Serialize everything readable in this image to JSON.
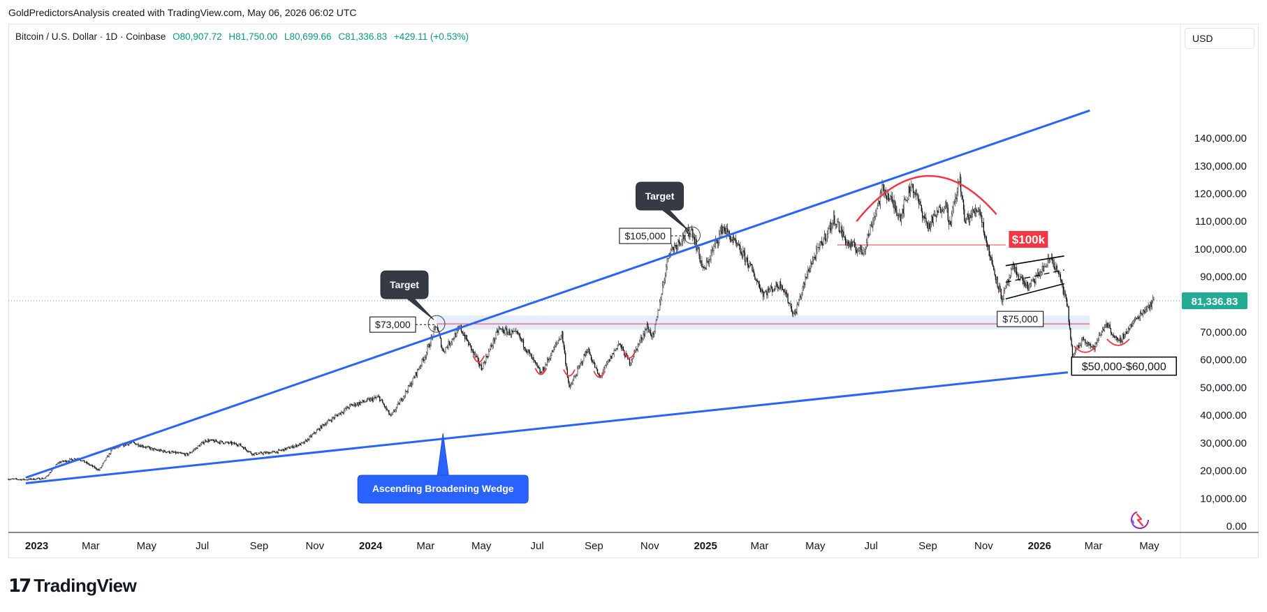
{
  "header": {
    "credit": "GoldPredictorsAnalysis created with TradingView.com, May 06, 2026 06:02 UTC"
  },
  "legend": {
    "symbol": "Bitcoin / U.S. Dollar · 1D · Coinbase",
    "open": "O80,907.72",
    "high": "H81,750.00",
    "low": "L80,699.66",
    "close": "C81,336.83",
    "change": "+429.11 (+0.53%)"
  },
  "currency_button": "USD",
  "footer": {
    "brand": "TradingView"
  },
  "colors": {
    "trendline": "#2962ff",
    "up": "#089981",
    "down": "#f23645",
    "pattern": "#f23645",
    "zone": "#c8d6f5",
    "price_tag": "#22ab94"
  },
  "chart_data": {
    "type": "candlestick",
    "title": "",
    "xlabel": "",
    "ylabel": "",
    "ylim": [
      0,
      150000
    ],
    "x_range": [
      "2022-12-01",
      "2026-05-06"
    ],
    "x_ticks": [
      {
        "date": "2023-01-01",
        "label": "2023",
        "bold": true
      },
      {
        "date": "2023-03-01",
        "label": "Mar"
      },
      {
        "date": "2023-05-01",
        "label": "May"
      },
      {
        "date": "2023-07-01",
        "label": "Jul"
      },
      {
        "date": "2023-09-01",
        "label": "Sep"
      },
      {
        "date": "2023-11-01",
        "label": "Nov"
      },
      {
        "date": "2024-01-01",
        "label": "2024",
        "bold": true
      },
      {
        "date": "2024-03-01",
        "label": "Mar"
      },
      {
        "date": "2024-05-01",
        "label": "May"
      },
      {
        "date": "2024-07-01",
        "label": "Jul"
      },
      {
        "date": "2024-09-01",
        "label": "Sep"
      },
      {
        "date": "2024-11-01",
        "label": "Nov"
      },
      {
        "date": "2025-01-01",
        "label": "2025",
        "bold": true
      },
      {
        "date": "2025-03-01",
        "label": "Mar"
      },
      {
        "date": "2025-05-01",
        "label": "May"
      },
      {
        "date": "2025-07-01",
        "label": "Jul"
      },
      {
        "date": "2025-09-01",
        "label": "Sep"
      },
      {
        "date": "2025-11-01",
        "label": "Nov"
      },
      {
        "date": "2026-01-01",
        "label": "2026",
        "bold": true
      },
      {
        "date": "2026-03-01",
        "label": "Mar"
      },
      {
        "date": "2026-05-01",
        "label": "May"
      }
    ],
    "y_ticks": [
      {
        "value": 0,
        "label": "0.00"
      },
      {
        "value": 10000,
        "label": "10,000.00"
      },
      {
        "value": 20000,
        "label": "20,000.00"
      },
      {
        "value": 30000,
        "label": "30,000.00"
      },
      {
        "value": 40000,
        "label": "40,000.00"
      },
      {
        "value": 50000,
        "label": "50,000.00"
      },
      {
        "value": 60000,
        "label": "60,000.00"
      },
      {
        "value": 70000,
        "label": "70,000.00"
      },
      {
        "value": 80000,
        "label": "80,000.00"
      },
      {
        "value": 90000,
        "label": "90,000.00"
      },
      {
        "value": 100000,
        "label": "100,000.00"
      },
      {
        "value": 110000,
        "label": "110,000.00"
      },
      {
        "value": 120000,
        "label": "120,000.00"
      },
      {
        "value": 130000,
        "label": "130,000.00"
      },
      {
        "value": 140000,
        "label": "140,000.00"
      }
    ],
    "last_price": {
      "value": 81336.83,
      "label": "81,336.83"
    },
    "price_path": [
      [
        "2022-12-01",
        17000
      ],
      [
        "2022-12-20",
        16800
      ],
      [
        "2023-01-10",
        17300
      ],
      [
        "2023-01-25",
        23000
      ],
      [
        "2023-02-15",
        24500
      ],
      [
        "2023-03-10",
        20200
      ],
      [
        "2023-03-25",
        28000
      ],
      [
        "2023-04-15",
        30200
      ],
      [
        "2023-05-10",
        27500
      ],
      [
        "2023-06-15",
        25800
      ],
      [
        "2023-07-05",
        31000
      ],
      [
        "2023-08-10",
        29500
      ],
      [
        "2023-08-25",
        26000
      ],
      [
        "2023-09-20",
        26800
      ],
      [
        "2023-10-20",
        30000
      ],
      [
        "2023-11-10",
        36500
      ],
      [
        "2023-12-10",
        43500
      ],
      [
        "2024-01-10",
        46500
      ],
      [
        "2024-01-23",
        39500
      ],
      [
        "2024-02-15",
        52000
      ],
      [
        "2024-03-01",
        62000
      ],
      [
        "2024-03-13",
        72500
      ],
      [
        "2024-03-20",
        63000
      ],
      [
        "2024-04-08",
        71500
      ],
      [
        "2024-05-01",
        57000
      ],
      [
        "2024-05-20",
        71000
      ],
      [
        "2024-06-10",
        69000
      ],
      [
        "2024-07-05",
        55000
      ],
      [
        "2024-07-28",
        69500
      ],
      [
        "2024-08-05",
        49500
      ],
      [
        "2024-08-25",
        64000
      ],
      [
        "2024-09-07",
        53500
      ],
      [
        "2024-09-28",
        66000
      ],
      [
        "2024-10-10",
        59000
      ],
      [
        "2024-10-29",
        72000
      ],
      [
        "2024-11-05",
        68000
      ],
      [
        "2024-11-22",
        99000
      ],
      [
        "2024-12-05",
        103500
      ],
      [
        "2024-12-17",
        107000
      ],
      [
        "2024-12-30",
        92000
      ],
      [
        "2025-01-20",
        108000
      ],
      [
        "2025-02-15",
        96000
      ],
      [
        "2025-03-05",
        84000
      ],
      [
        "2025-03-25",
        87500
      ],
      [
        "2025-04-08",
        76000
      ],
      [
        "2025-04-25",
        94000
      ],
      [
        "2025-05-22",
        111000
      ],
      [
        "2025-06-05",
        102000
      ],
      [
        "2025-06-22",
        99000
      ],
      [
        "2025-07-14",
        122000
      ],
      [
        "2025-08-02",
        112000
      ],
      [
        "2025-08-14",
        123500
      ],
      [
        "2025-09-01",
        108000
      ],
      [
        "2025-09-20",
        117000
      ],
      [
        "2025-09-25",
        109000
      ],
      [
        "2025-10-06",
        125500
      ],
      [
        "2025-10-11",
        110000
      ],
      [
        "2025-10-27",
        115000
      ],
      [
        "2025-11-05",
        101000
      ],
      [
        "2025-11-21",
        82000
      ],
      [
        "2025-12-03",
        93000
      ],
      [
        "2025-12-20",
        86000
      ],
      [
        "2026-01-05",
        93000
      ],
      [
        "2026-01-14",
        97000
      ],
      [
        "2026-01-25",
        88000
      ],
      [
        "2026-02-01",
        78000
      ],
      [
        "2026-02-06",
        61000
      ],
      [
        "2026-02-18",
        68000
      ],
      [
        "2026-03-01",
        64000
      ],
      [
        "2026-03-15",
        73500
      ],
      [
        "2026-03-28",
        66000
      ],
      [
        "2026-04-10",
        72000
      ],
      [
        "2026-04-25",
        78000
      ],
      [
        "2026-05-06",
        81336.83
      ]
    ],
    "trendlines": [
      {
        "name": "upper",
        "from": [
          "2022-12-20",
          17500
        ],
        "to": [
          "2026-02-25",
          150000
        ]
      },
      {
        "name": "lower",
        "from": [
          "2022-12-20",
          15500
        ],
        "to": [
          "2026-02-01",
          55500
        ]
      }
    ],
    "support_zone": {
      "from": "2024-03-13",
      "to": "2026-02-25",
      "low": 71000,
      "high": 76000,
      "line": 73000
    },
    "resistance_line": {
      "from": "2025-05-25",
      "to": "2025-11-25",
      "value": 101500
    },
    "channel": {
      "from": "2025-11-25",
      "to": "2026-01-28",
      "upper": [
        94000,
        97500
      ],
      "lower": [
        82000,
        87500
      ],
      "mid": [
        88000,
        92500
      ]
    },
    "rounded_top": {
      "from": "2025-06-15",
      "to": "2025-11-15",
      "peak": 126500,
      "ends": 110000
    },
    "bottoms": [
      {
        "date": "2024-04-28",
        "value": 59500
      },
      {
        "date": "2024-07-05",
        "value": 55000
      },
      {
        "date": "2024-08-05",
        "value": 54500
      },
      {
        "date": "2024-09-07",
        "value": 54000
      },
      {
        "date": "2024-10-10",
        "value": 61000
      },
      {
        "date": "2026-02-20",
        "value": 63000
      },
      {
        "date": "2026-03-28",
        "value": 65500
      }
    ],
    "annotations": [
      {
        "label": "Target",
        "date": "2024-03-13",
        "value": 73000,
        "price_label": "$73,000"
      },
      {
        "label": "Target",
        "date": "2024-12-17",
        "value": 105000,
        "price_label": "$105,000"
      },
      {
        "label": "$100k",
        "date": "2025-11-27",
        "value": 102500
      },
      {
        "label": "$75,000",
        "date": "2026-01-25",
        "value": 73000
      },
      {
        "label": "$50,000-$60,000",
        "date": "2026-02-15",
        "value": 57000
      },
      {
        "label": "Ascending Broadening Wedge",
        "date": "2024-03-20",
        "value": 33000
      }
    ]
  }
}
